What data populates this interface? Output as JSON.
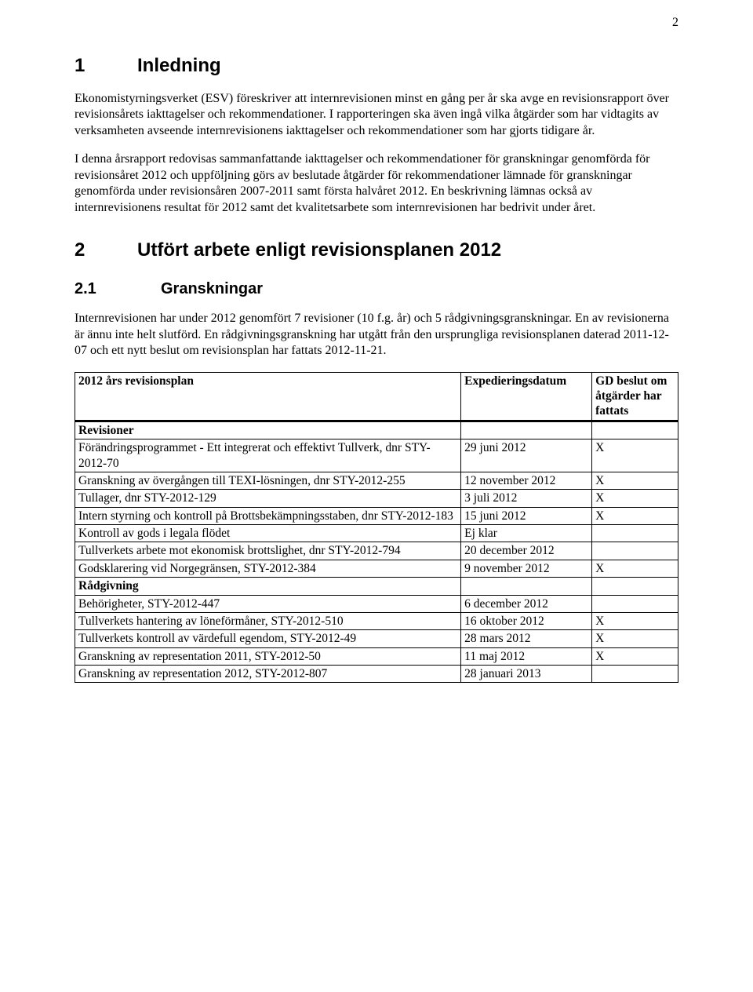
{
  "pageNumber": "2",
  "section1": {
    "num": "1",
    "title": "Inledning",
    "p1": "Ekonomistyrningsverket (ESV) föreskriver att internrevisionen minst en gång per år ska avge en revisionsrapport över revisionsårets iakttagelser och rekommendationer. I rapporteringen ska även ingå vilka åtgärder som har vidtagits av verksamheten avseende internrevisionens iakttagelser och rekommendationer som har gjorts tidigare år.",
    "p2": "I denna årsrapport redovisas sammanfattande iakttagelser och rekommendationer för granskningar genomförda för revisionsåret 2012 och uppföljning görs av beslutade åtgärder för rekommendationer lämnade för granskningar genomförda under revisionsåren 2007-2011 samt första halvåret 2012. En beskrivning lämnas också av internrevisionens resultat för 2012 samt det kvalitetsarbete som internrevisionen har bedrivit under året."
  },
  "section2": {
    "num": "2",
    "title": "Utfört arbete enligt revisionsplanen 2012"
  },
  "section21": {
    "num": "2.1",
    "title": "Granskningar",
    "p1": "Internrevisionen har under 2012 genomfört 7 revisioner (10 f.g. år) och 5 rådgivningsgranskningar. En av revisionerna är ännu inte helt slutförd. En rådgivningsgranskning har utgått från den ursprungliga revisionsplanen daterad 2011-12-07 och ett nytt beslut om revisionsplan har fattats 2012-11-21."
  },
  "table": {
    "headers": {
      "col1": "2012 års revisionsplan",
      "col2": "Expedieringsdatum",
      "col3": "GD beslut om åtgärder har fattats"
    },
    "rows": [
      {
        "type": "section",
        "col1": "Revisioner",
        "col2": "",
        "col3": ""
      },
      {
        "type": "data",
        "col1": "Förändringsprogrammet - Ett integrerat och effektivt Tullverk, dnr STY-2012-70",
        "col2": "29 juni 2012",
        "col3": "X"
      },
      {
        "type": "data",
        "col1": "Granskning av övergången till TEXI-lösningen, dnr STY-2012-255",
        "col2": "12 november 2012",
        "col3": "X"
      },
      {
        "type": "data",
        "col1": "Tullager, dnr STY-2012-129",
        "col2": "3 juli 2012",
        "col3": "X"
      },
      {
        "type": "data",
        "col1": "Intern styrning och kontroll på Brottsbekämpningsstaben, dnr STY-2012-183",
        "col2": "15 juni 2012",
        "col3": "X"
      },
      {
        "type": "data",
        "col1": "Kontroll av gods i legala flödet",
        "col2": "Ej klar",
        "col3": ""
      },
      {
        "type": "data",
        "col1": "Tullverkets arbete mot ekonomisk brottslighet, dnr STY-2012-794",
        "col2": "20 december 2012",
        "col3": ""
      },
      {
        "type": "data",
        "col1": "Godsklarering vid Norgegränsen, STY-2012-384",
        "col2": "9 november 2012",
        "col3": "X"
      },
      {
        "type": "section",
        "col1": "Rådgivning",
        "col2": "",
        "col3": ""
      },
      {
        "type": "data",
        "col1": "Behörigheter, STY-2012-447",
        "col2": "6 december 2012",
        "col3": ""
      },
      {
        "type": "data",
        "col1": "Tullverkets hantering av löneförmåner, STY-2012-510",
        "col2": "16 oktober 2012",
        "col3": "X"
      },
      {
        "type": "data",
        "col1": "Tullverkets kontroll av värdefull egendom, STY-2012-49",
        "col2": "28 mars 2012",
        "col3": "X"
      },
      {
        "type": "data",
        "col1": "Granskning av representation 2011, STY-2012-50",
        "col2": "11 maj 2012",
        "col3": "X"
      },
      {
        "type": "data",
        "col1": "Granskning av representation 2012, STY-2012-807",
        "col2": "28 januari 2013",
        "col3": ""
      }
    ],
    "colWidths": {
      "col1": "493px",
      "col2": "167px",
      "col3": "110px"
    }
  }
}
